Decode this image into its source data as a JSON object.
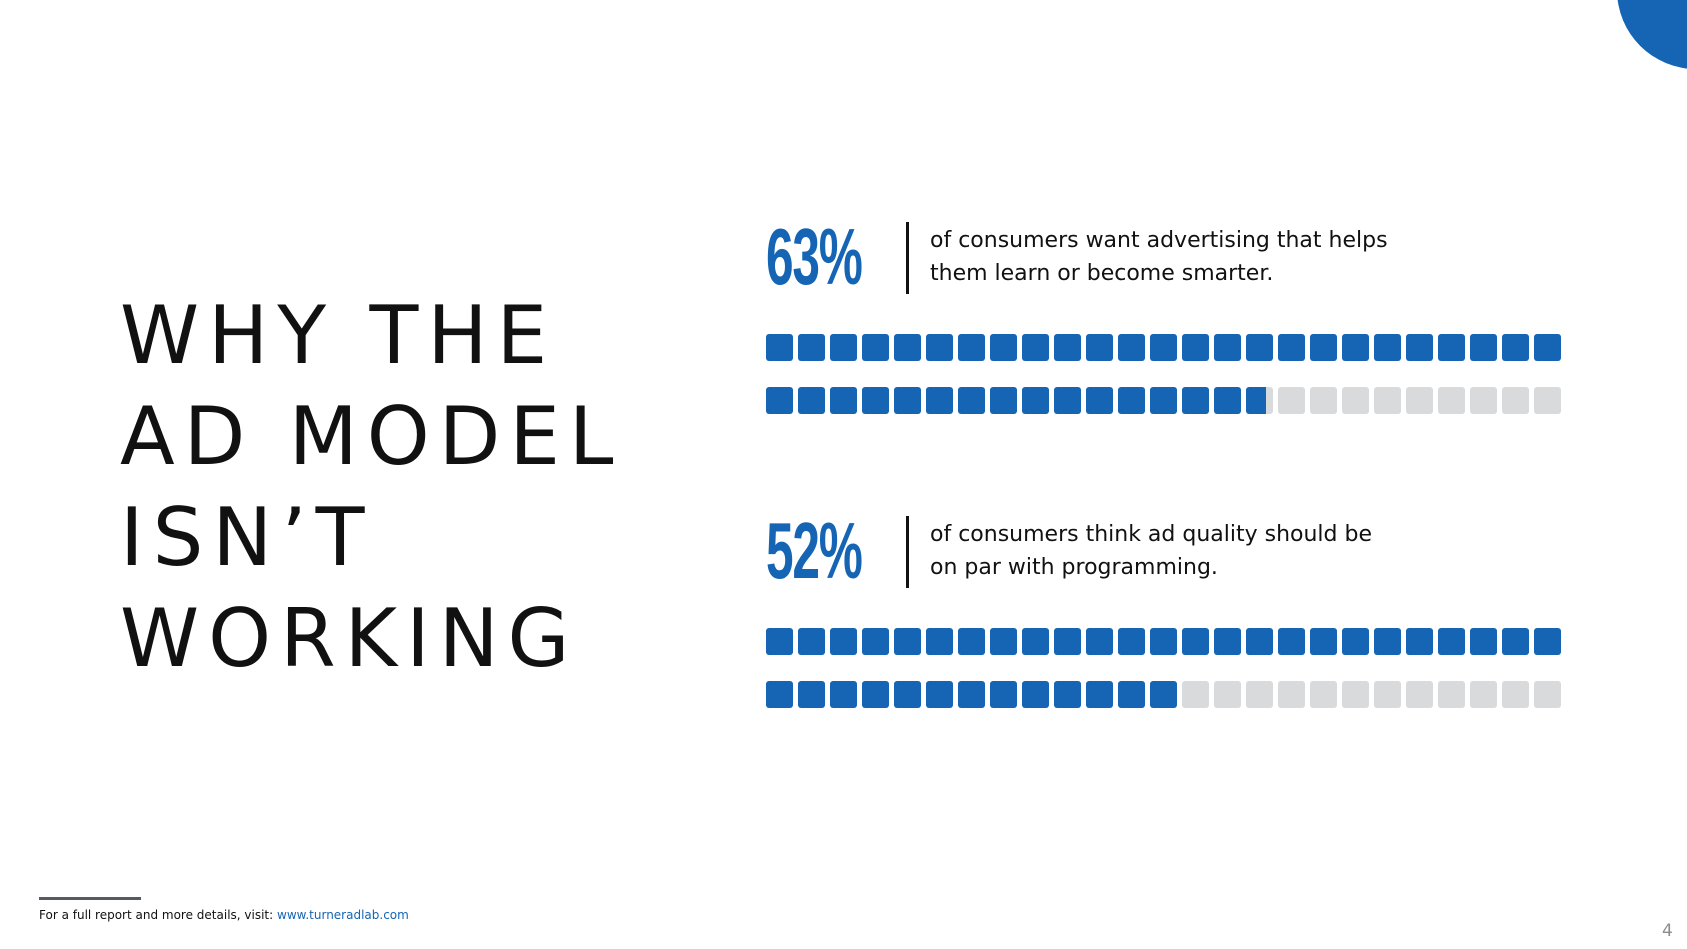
{
  "title": {
    "lines": [
      "WHY THE",
      "AD MODEL",
      "ISN’T",
      "WORKING"
    ]
  },
  "stats": [
    {
      "percent_label": "63%",
      "description_lines": [
        "of consumers want advertising that helps",
        "them learn or become smarter."
      ],
      "waffle": {
        "total_cells": 25,
        "value_fraction": 0.63
      }
    },
    {
      "percent_label": "52%",
      "description_lines": [
        "of consumers think ad quality should be",
        "on par with programming."
      ],
      "waffle": {
        "total_cells": 25,
        "value_fraction": 0.52
      }
    }
  ],
  "footer": {
    "text": "For a full report and more details, visit: ",
    "link_text": "www.turneradlab.com"
  },
  "page_number": "4",
  "colors": {
    "accent": "#1565b4",
    "empty_cell": "#d9dadc",
    "text": "#111111"
  }
}
